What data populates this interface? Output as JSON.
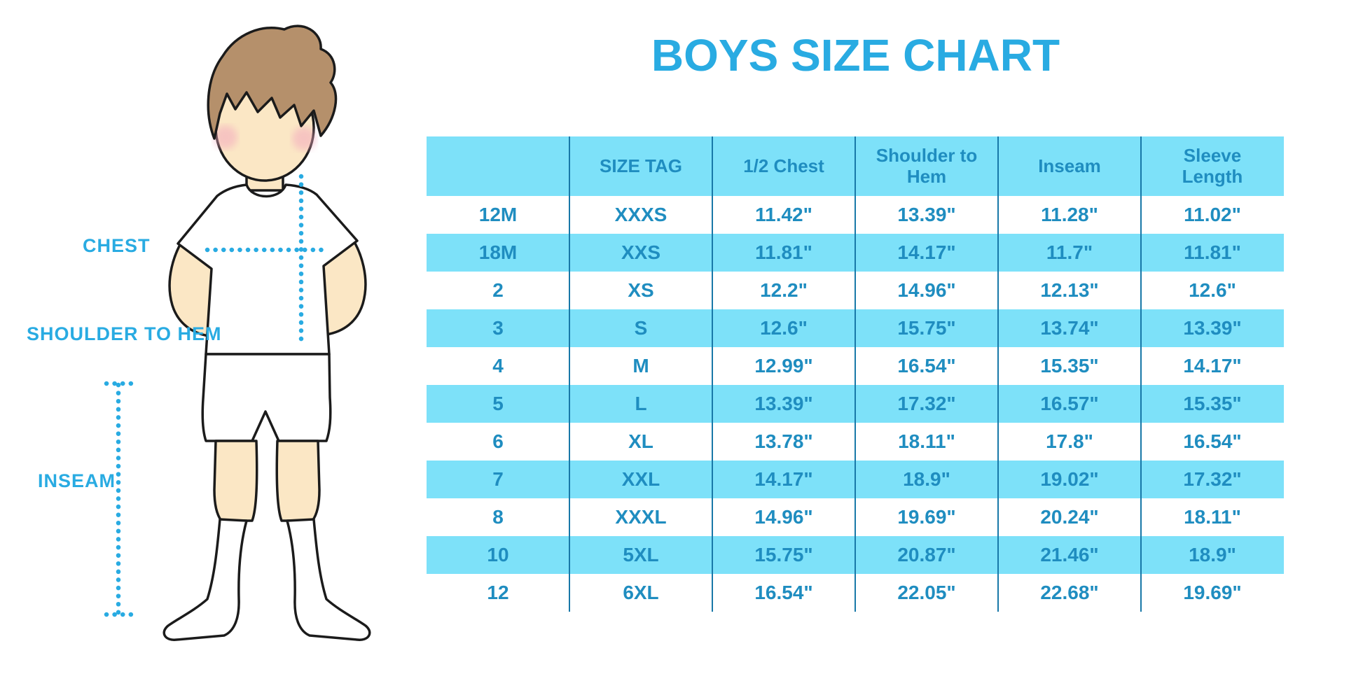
{
  "page": {
    "title": "BOYS SIZE CHART"
  },
  "figure_labels": {
    "chest": "CHEST",
    "shoulder_to_hem": "SHOULDER TO HEM",
    "inseam": "INSEAM"
  },
  "colors": {
    "accent": "#29ABE2",
    "row_stripe": "#7DE1F9",
    "table_text": "#1F8DC0",
    "column_divider": "#1878A8"
  },
  "chart_data": {
    "type": "table",
    "title": "BOYS SIZE CHART",
    "columns": [
      "",
      "SIZE TAG",
      "1/2 Chest",
      "Shoulder to Hem",
      "Inseam",
      "Sleeve Length"
    ],
    "rows": [
      [
        "12M",
        "XXXS",
        "11.42\"",
        "13.39\"",
        "11.28\"",
        "11.02\""
      ],
      [
        "18M",
        "XXS",
        "11.81\"",
        "14.17\"",
        "11.7\"",
        "11.81\""
      ],
      [
        "2",
        "XS",
        "12.2\"",
        "14.96\"",
        "12.13\"",
        "12.6\""
      ],
      [
        "3",
        "S",
        "12.6\"",
        "15.75\"",
        "13.74\"",
        "13.39\""
      ],
      [
        "4",
        "M",
        "12.99\"",
        "16.54\"",
        "15.35\"",
        "14.17\""
      ],
      [
        "5",
        "L",
        "13.39\"",
        "17.32\"",
        "16.57\"",
        "15.35\""
      ],
      [
        "6",
        "XL",
        "13.78\"",
        "18.11\"",
        "17.8\"",
        "16.54\""
      ],
      [
        "7",
        "XXL",
        "14.17\"",
        "18.9\"",
        "19.02\"",
        "17.32\""
      ],
      [
        "8",
        "XXXL",
        "14.96\"",
        "19.69\"",
        "20.24\"",
        "18.11\""
      ],
      [
        "10",
        "5XL",
        "15.75\"",
        "20.87\"",
        "21.46\"",
        "18.9\""
      ],
      [
        "12",
        "6XL",
        "16.54\"",
        "22.05\"",
        "22.68\"",
        "19.69\""
      ]
    ],
    "layout": {
      "striped_rows": "alternating white / light-cyan starting white",
      "header_background": "light-cyan",
      "column_dividers": 5
    }
  }
}
